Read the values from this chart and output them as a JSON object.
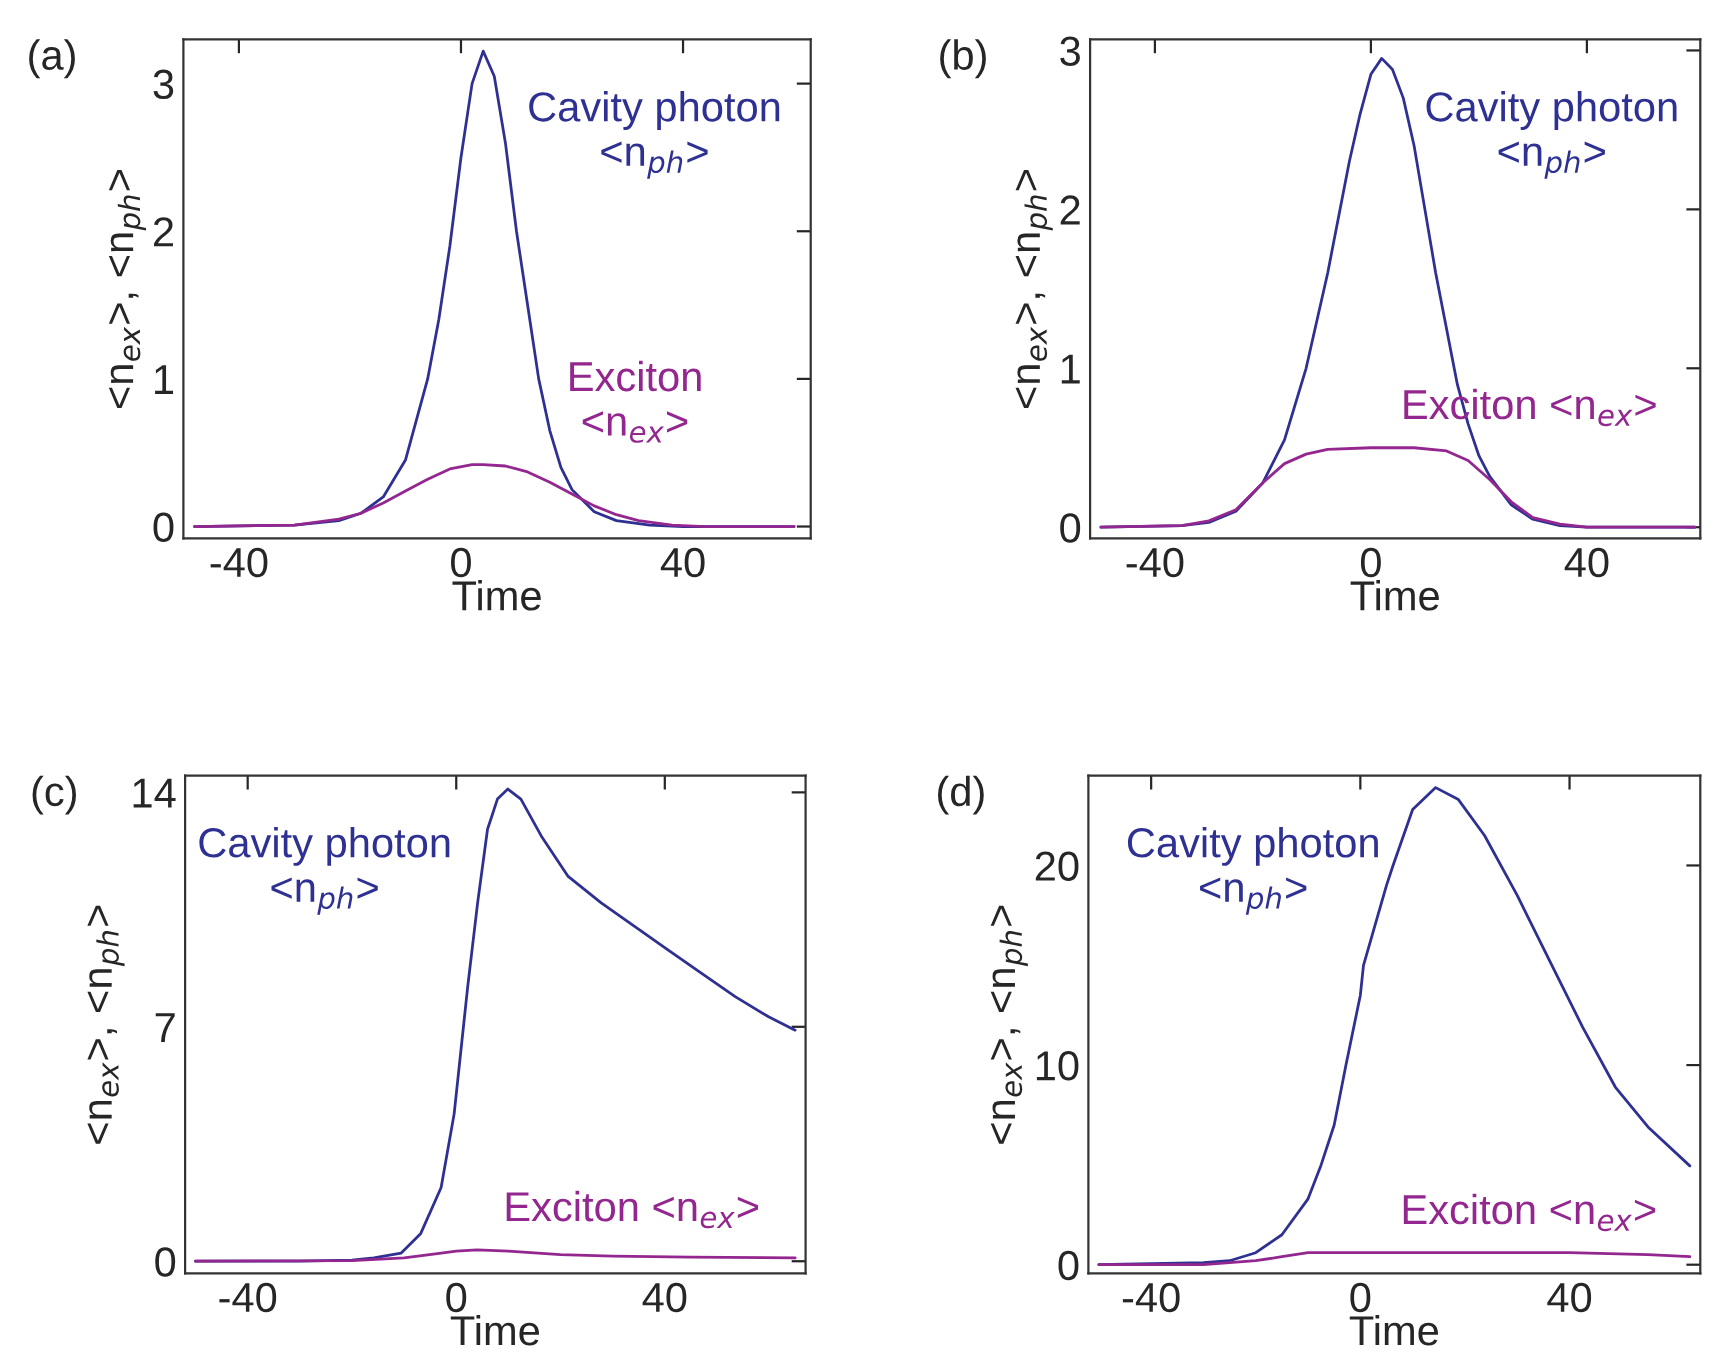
{
  "chart_data": [
    {
      "type": "line",
      "title": "(a)",
      "xlabel": "Time",
      "ylabel": "<n$_{ex}$>, <n$_{ph}$>",
      "xlim": [
        -50,
        63
      ],
      "ylim": [
        -0.08,
        3.3
      ],
      "xticks": [
        -40,
        0,
        40
      ],
      "yticks": [
        0,
        1,
        2,
        3
      ],
      "grid": false,
      "legend": false,
      "series": [
        {
          "name": "Cavity photon\n<n$_{ph}$>",
          "color": "#2e3192",
          "x": [
            -48,
            -30,
            -22,
            -18,
            -14,
            -10,
            -6,
            -4,
            -2,
            0,
            2,
            4,
            6,
            8,
            10,
            12,
            14,
            16,
            18,
            20,
            24,
            28,
            34,
            40,
            60
          ],
          "values": [
            0,
            0.01,
            0.04,
            0.09,
            0.2,
            0.45,
            1.0,
            1.4,
            1.9,
            2.5,
            3.0,
            3.22,
            3.05,
            2.6,
            2.0,
            1.5,
            1.0,
            0.65,
            0.4,
            0.25,
            0.1,
            0.04,
            0.01,
            0,
            0
          ]
        },
        {
          "name": "Exciton\n<n$_{ex}$>",
          "color": "#93278f",
          "x": [
            -48,
            -30,
            -22,
            -18,
            -14,
            -10,
            -6,
            -2,
            2,
            4,
            8,
            12,
            16,
            20,
            24,
            28,
            32,
            38,
            44,
            60
          ],
          "values": [
            0,
            0.01,
            0.05,
            0.09,
            0.16,
            0.24,
            0.32,
            0.39,
            0.42,
            0.42,
            0.41,
            0.37,
            0.3,
            0.22,
            0.14,
            0.08,
            0.04,
            0.01,
            0,
            0
          ]
        }
      ]
    },
    {
      "type": "line",
      "title": "(b)",
      "xlabel": "Time",
      "ylabel": "<n$_{ex}$>, <n$_{ph}$>",
      "xlim": [
        -52,
        61
      ],
      "ylim": [
        -0.07,
        3.07
      ],
      "xticks": [
        -40,
        0,
        40
      ],
      "yticks": [
        0,
        1,
        2,
        3
      ],
      "grid": false,
      "legend": false,
      "series": [
        {
          "name": "Cavity photon\n<n$_{ph}$>",
          "color": "#2e3192",
          "x": [
            -50,
            -35,
            -30,
            -25,
            -20,
            -16,
            -12,
            -8,
            -4,
            -2,
            0,
            2,
            4,
            6,
            8,
            10,
            12,
            14,
            16,
            18,
            20,
            22,
            26,
            30,
            35,
            40,
            60
          ],
          "values": [
            0,
            0.01,
            0.03,
            0.1,
            0.28,
            0.55,
            1.0,
            1.6,
            2.3,
            2.6,
            2.85,
            2.95,
            2.88,
            2.7,
            2.4,
            2.0,
            1.6,
            1.25,
            0.9,
            0.65,
            0.45,
            0.32,
            0.14,
            0.05,
            0.01,
            0,
            0
          ]
        },
        {
          "name": "Exciton <n$_{ex}$>",
          "color": "#93278f",
          "x": [
            -50,
            -35,
            -30,
            -25,
            -20,
            -16,
            -12,
            -8,
            0,
            8,
            14,
            18,
            22,
            26,
            30,
            35,
            40,
            60
          ],
          "values": [
            0,
            0.01,
            0.04,
            0.11,
            0.28,
            0.4,
            0.46,
            0.49,
            0.5,
            0.5,
            0.48,
            0.42,
            0.3,
            0.16,
            0.06,
            0.02,
            0,
            0
          ]
        }
      ]
    },
    {
      "type": "line",
      "title": "(c)",
      "xlabel": "Time",
      "ylabel": "<n$_{ex}$>, <n$_{ph}$>",
      "xlim": [
        -52,
        67
      ],
      "ylim": [
        -0.36,
        14.5
      ],
      "xticks": [
        -40,
        0,
        40
      ],
      "yticks": [
        0,
        7,
        14
      ],
      "grid": false,
      "legend": false,
      "series": [
        {
          "name": "Cavity photon\n<n$_{ph}$>",
          "color": "#2e3192",
          "x": [
            -50,
            -30,
            -20,
            -15.8,
            -10.6,
            -6.8,
            -2.9,
            -0.4,
            2.2,
            4.1,
            6,
            7.9,
            9.9,
            12.4,
            16.3,
            21.4,
            27.8,
            34.2,
            40.6,
            47,
            53.5,
            59.9,
            65
          ],
          "values": [
            0,
            0,
            0.03,
            0.1,
            0.24,
            0.83,
            2.2,
            4.4,
            8.2,
            10.7,
            12.9,
            13.8,
            14.1,
            13.8,
            12.7,
            11.5,
            10.7,
            10.0,
            9.3,
            8.6,
            7.9,
            7.3,
            6.9
          ]
        },
        {
          "name": "Exciton <n$_{ex}$>",
          "color": "#93278f",
          "x": [
            -50,
            -20,
            -10,
            -4,
            0,
            4,
            10,
            20,
            30,
            45,
            65
          ],
          "values": [
            0,
            0.02,
            0.1,
            0.22,
            0.3,
            0.34,
            0.3,
            0.2,
            0.15,
            0.12,
            0.1
          ]
        }
      ]
    },
    {
      "type": "line",
      "title": "(d)",
      "xlabel": "Time",
      "ylabel": "<n$_{ex}$>, <n$_{ph}$>",
      "xlim": [
        -52,
        65
      ],
      "ylim": [
        -0.43,
        24.5
      ],
      "xticks": [
        -40,
        0,
        40
      ],
      "yticks": [
        0,
        10,
        20
      ],
      "grid": false,
      "legend": false,
      "series": [
        {
          "name": "Cavity photon\n<n$_{ph}$>",
          "color": "#2e3192",
          "x": [
            -50,
            -30,
            -25,
            -20,
            -15,
            -10,
            -7.5,
            -5,
            -2.75,
            0,
            0.6,
            5,
            6.25,
            10,
            14.4,
            18.75,
            23.75,
            30,
            36.25,
            42.5,
            48.75,
            55,
            63
          ],
          "values": [
            0,
            0.1,
            0.2,
            0.6,
            1.5,
            3.3,
            5,
            7,
            10,
            13.5,
            15,
            19,
            20,
            22.8,
            23.9,
            23.3,
            21.5,
            18.5,
            15.2,
            11.9,
            8.9,
            6.9,
            4.95
          ]
        },
        {
          "name": "Exciton <n$_{ex}$>",
          "color": "#93278f",
          "x": [
            -50,
            -30,
            -20,
            -15,
            -10,
            0,
            20,
            40,
            55,
            63
          ],
          "values": [
            0,
            0,
            0.2,
            0.4,
            0.6,
            0.6,
            0.6,
            0.6,
            0.5,
            0.4
          ]
        }
      ]
    }
  ]
}
